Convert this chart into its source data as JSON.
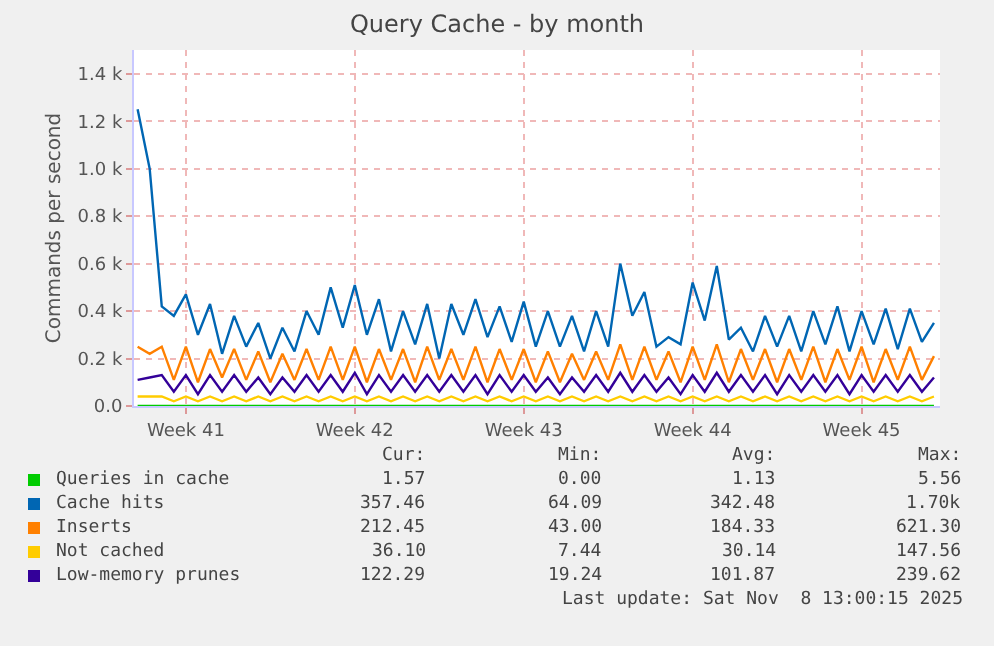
{
  "chart_data": {
    "type": "line",
    "title": "Query Cache - by month",
    "ylabel": "Commands per second",
    "categories": [
      null,
      null,
      null,
      null,
      "Week 41",
      null,
      null,
      null,
      null,
      null,
      null,
      null,
      null,
      null,
      null,
      null,
      null,
      null,
      "Week 42",
      null,
      null,
      null,
      null,
      null,
      null,
      null,
      null,
      null,
      null,
      null,
      null,
      null,
      "Week 43",
      null,
      null,
      null,
      null,
      null,
      null,
      null,
      null,
      null,
      null,
      null,
      null,
      null,
      "Week 44",
      null,
      null,
      null,
      null,
      null,
      null,
      null,
      null,
      null,
      null,
      null,
      null,
      null,
      "Week 45",
      null,
      null,
      null,
      null,
      null,
      null
    ],
    "series": [
      {
        "name": "Queries in cache",
        "color": "#00cc00",
        "values": [
          0,
          0,
          0,
          0,
          0,
          0,
          0,
          0,
          0,
          0,
          0,
          0,
          0,
          0,
          0,
          0,
          0,
          0,
          0,
          0,
          0,
          0,
          0,
          0,
          0,
          0,
          0,
          0,
          0,
          0,
          0,
          0,
          0,
          0,
          0,
          0,
          0,
          0,
          0,
          0,
          0,
          0,
          0,
          0,
          0,
          0,
          0,
          0,
          0,
          0,
          0,
          0,
          0,
          0,
          0,
          0,
          0,
          0,
          0,
          0,
          0,
          0,
          0,
          0,
          0,
          0,
          0
        ]
      },
      {
        "name": "Cache hits",
        "color": "#0066b3",
        "values": [
          1250,
          1000,
          420,
          380,
          470,
          300,
          430,
          220,
          380,
          250,
          350,
          200,
          330,
          230,
          400,
          300,
          500,
          330,
          510,
          300,
          450,
          230,
          400,
          260,
          430,
          200,
          430,
          300,
          450,
          290,
          420,
          270,
          440,
          250,
          400,
          250,
          380,
          230,
          400,
          250,
          600,
          380,
          480,
          250,
          290,
          260,
          520,
          360,
          590,
          280,
          330,
          230,
          380,
          250,
          380,
          230,
          400,
          260,
          420,
          230,
          400,
          260,
          410,
          240,
          410,
          270,
          350
        ]
      },
      {
        "name": "Inserts",
        "color": "#ff8000",
        "values": [
          250,
          220,
          250,
          110,
          250,
          100,
          240,
          120,
          240,
          110,
          230,
          100,
          220,
          110,
          240,
          110,
          250,
          110,
          250,
          100,
          240,
          110,
          240,
          100,
          250,
          110,
          240,
          110,
          250,
          100,
          240,
          110,
          240,
          100,
          230,
          100,
          220,
          110,
          230,
          110,
          260,
          110,
          250,
          110,
          230,
          100,
          250,
          110,
          260,
          100,
          240,
          110,
          240,
          100,
          240,
          110,
          250,
          100,
          240,
          110,
          250,
          100,
          240,
          110,
          250,
          110,
          210
        ]
      },
      {
        "name": "Not cached",
        "color": "#ffcc00",
        "values": [
          40,
          40,
          40,
          20,
          40,
          20,
          40,
          20,
          40,
          20,
          40,
          20,
          40,
          20,
          40,
          20,
          40,
          20,
          40,
          20,
          40,
          20,
          40,
          20,
          40,
          20,
          40,
          20,
          40,
          20,
          40,
          20,
          40,
          20,
          40,
          20,
          40,
          20,
          40,
          20,
          40,
          20,
          40,
          20,
          40,
          20,
          40,
          20,
          40,
          20,
          40,
          20,
          40,
          20,
          40,
          20,
          40,
          20,
          40,
          20,
          40,
          20,
          40,
          20,
          40,
          20,
          40
        ]
      },
      {
        "name": "Low-memory prunes",
        "color": "#330099",
        "values": [
          110,
          120,
          130,
          60,
          130,
          50,
          130,
          60,
          130,
          60,
          120,
          50,
          120,
          60,
          130,
          60,
          130,
          60,
          140,
          50,
          130,
          60,
          130,
          60,
          130,
          60,
          130,
          60,
          130,
          50,
          130,
          60,
          130,
          60,
          120,
          50,
          120,
          60,
          130,
          60,
          140,
          60,
          130,
          60,
          120,
          50,
          130,
          60,
          140,
          60,
          130,
          60,
          130,
          50,
          130,
          60,
          130,
          60,
          130,
          50,
          130,
          60,
          130,
          60,
          130,
          60,
          120
        ]
      }
    ],
    "ylim": [
      0,
      1500
    ],
    "yticks": [
      {
        "value": 0,
        "label": "0.0"
      },
      {
        "value": 200,
        "label": "0.2 k"
      },
      {
        "value": 400,
        "label": "0.4 k"
      },
      {
        "value": 600,
        "label": "0.6 k"
      },
      {
        "value": 800,
        "label": "0.8 k"
      },
      {
        "value": 1000,
        "label": "1.0 k"
      },
      {
        "value": 1200,
        "label": "1.2 k"
      },
      {
        "value": 1400,
        "label": "1.4 k"
      }
    ],
    "grid": true,
    "legend": "bottom",
    "annotations": [
      "Cur:",
      "Min:",
      "Avg:",
      "Max:",
      "1.57",
      "0.00",
      "1.13",
      "5.56",
      "357.46",
      "64.09",
      "342.48",
      "1.70k",
      "212.45",
      "43.00",
      "184.33",
      "621.30",
      "36.10",
      "7.44",
      "30.14",
      "147.56",
      "122.29",
      "19.24",
      "101.87",
      "239.62",
      "Last update: Sat Nov  8 13:00:15 2025"
    ]
  }
}
